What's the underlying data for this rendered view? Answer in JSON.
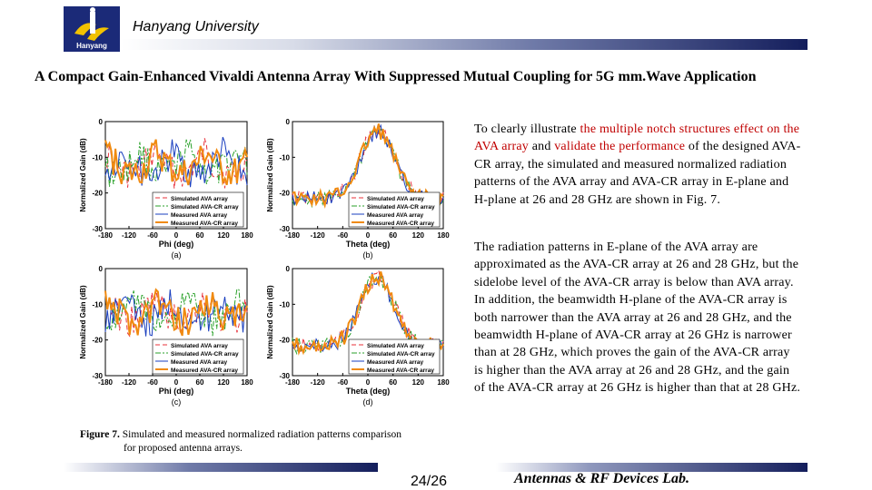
{
  "header": {
    "university": "Hanyang University",
    "logo_text": "Hanyang"
  },
  "title": "A Compact Gain-Enhanced Vivaldi Antenna Array With Suppressed Mutual Coupling for 5G mm.Wave Application",
  "figure": {
    "caption_label": "Figure 7.",
    "caption_line1": "Simulated and measured normalized radiation patterns comparison",
    "caption_line2": "for proposed antenna arrays.",
    "legend": [
      "Simulated AVA array",
      "Simulated AVA-CR array",
      "Measured AVA array",
      "Measured AVA-CR array"
    ],
    "series_colors": [
      "#e8303a",
      "#2aa12a",
      "#1a3fbf",
      "#f08a10"
    ],
    "y_ticks": [
      "0",
      "-10",
      "-20",
      "-30"
    ],
    "x_ticks": [
      "-180",
      "-120",
      "-60",
      "0",
      "60",
      "120",
      "180"
    ],
    "ylabel": "Normalized Gain (dB)",
    "panels": [
      {
        "tag": "(a)",
        "xlabel": "Phi (deg)"
      },
      {
        "tag": "(b)",
        "xlabel": "Theta (deg)"
      },
      {
        "tag": "(c)",
        "xlabel": "Phi (deg)"
      },
      {
        "tag": "(d)",
        "xlabel": "Theta (deg)"
      }
    ]
  },
  "text": {
    "p1_a": "To clearly illustrate ",
    "p1_hl": "the multiple notch structures effect on the AVA array",
    "p1_b": " and ",
    "p1_hl2": "validate the performance",
    "p1_c": " of the designed AVA-CR array, the simulated and measured normalized radiation patterns of the AVA array and AVA-CR array in E-plane and H-plane at 26 and 28 GHz are shown in Fig. 7.",
    "p2": "The radiation patterns in E-plane of the AVA array are approximated as the AVA-CR array at 26 and 28 GHz, but the sidelobe level of the AVA-CR array is below than AVA array.",
    "p3": "In addition, the beamwidth H-plane of the AVA-CR array is both narrower than the AVA array at 26 and 28 GHz, and the beamwidth H-plane of AVA-CR array at 26 GHz is narrower than at 28 GHz, which proves the gain of the AVA-CR array is higher than the AVA array at 26 and 28 GHz, and the gain of the AVA-CR array at 26 GHz is higher than that at 28 GHz."
  },
  "footer": {
    "page": "24/26",
    "lab": "Antennas & RF Devices Lab."
  }
}
